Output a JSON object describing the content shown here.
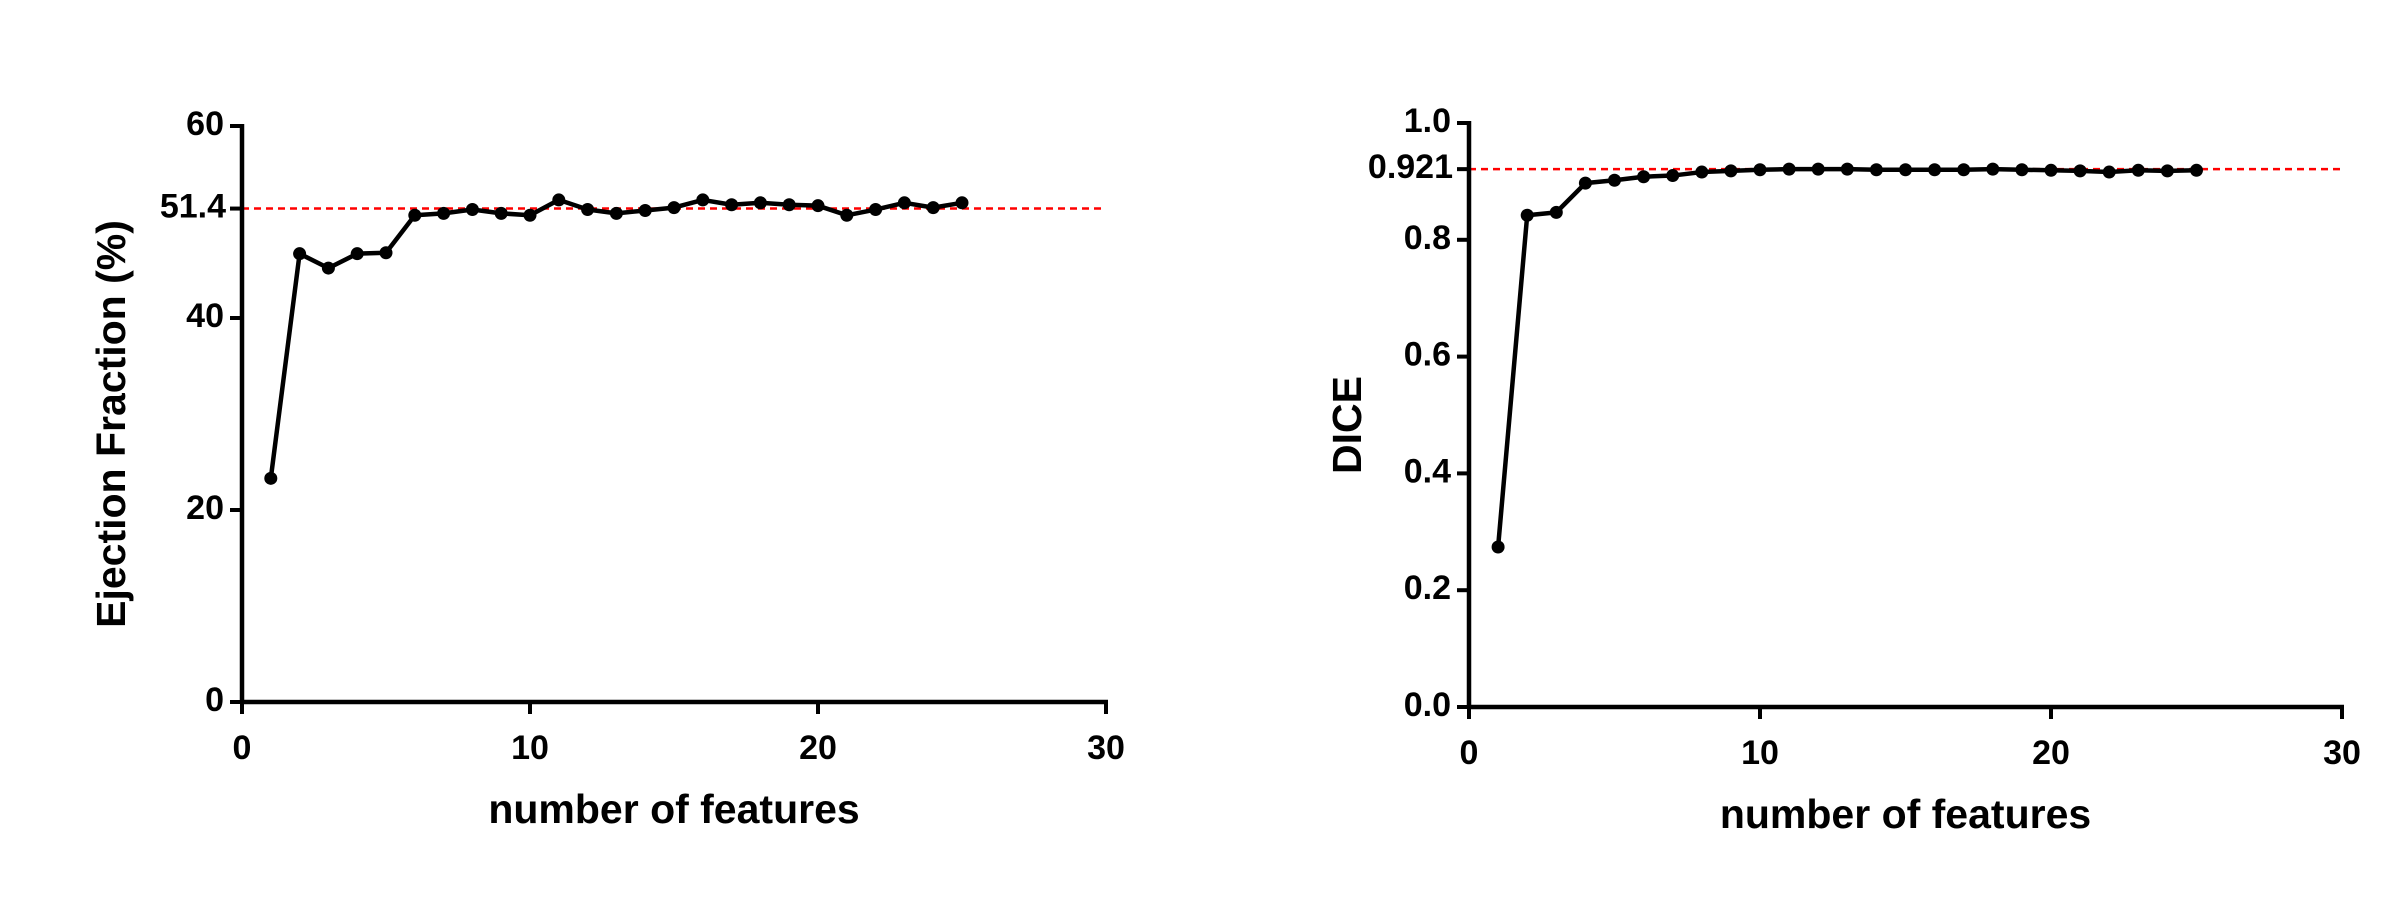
{
  "chart_data": [
    {
      "type": "line",
      "x_label": "number of features",
      "y_label": "Ejection Fraction (%)",
      "xlim": [
        0,
        30
      ],
      "xticks": [
        0,
        10,
        20,
        30
      ],
      "ylim": [
        0,
        60
      ],
      "yticks": [
        0,
        20,
        40,
        60
      ],
      "reference_line": {
        "value": 51.4,
        "color": "#ff0000"
      },
      "series": [
        {
          "color": "#000000",
          "x": [
            1,
            2,
            3,
            4,
            5,
            6,
            7,
            8,
            9,
            10,
            11,
            12,
            13,
            14,
            15,
            16,
            17,
            18,
            19,
            20,
            21,
            22,
            23,
            24,
            25
          ],
          "values": [
            23.3,
            46.7,
            45.2,
            46.7,
            46.8,
            50.7,
            50.9,
            51.3,
            50.9,
            50.7,
            52.3,
            51.3,
            50.9,
            51.2,
            51.5,
            52.3,
            51.8,
            52.0,
            51.8,
            51.7,
            50.7,
            51.3,
            52.0,
            51.5,
            52.0
          ]
        }
      ]
    },
    {
      "type": "line",
      "x_label": "number of features",
      "y_label": "DICE",
      "xlim": [
        0,
        30
      ],
      "xticks": [
        0,
        10,
        20,
        30
      ],
      "ylim": [
        0,
        1
      ],
      "yticks": [
        {
          "value": 0,
          "label": "0.0"
        },
        0.2,
        0.4,
        0.6,
        0.8,
        {
          "value": 1,
          "label": "1.0"
        }
      ],
      "reference_line": {
        "value": 0.921,
        "color": "#ff0000"
      },
      "series": [
        {
          "color": "#000000",
          "x": [
            1,
            2,
            3,
            4,
            5,
            6,
            7,
            8,
            9,
            10,
            11,
            12,
            13,
            14,
            15,
            16,
            17,
            18,
            19,
            20,
            21,
            22,
            23,
            24,
            25
          ],
          "values": [
            0.274,
            0.842,
            0.847,
            0.897,
            0.902,
            0.908,
            0.91,
            0.916,
            0.918,
            0.92,
            0.921,
            0.921,
            0.921,
            0.92,
            0.92,
            0.92,
            0.92,
            0.921,
            0.92,
            0.919,
            0.918,
            0.916,
            0.919,
            0.918,
            0.919
          ]
        }
      ]
    }
  ]
}
